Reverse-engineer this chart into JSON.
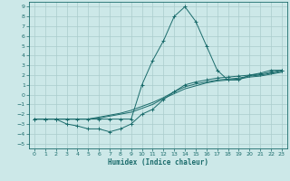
{
  "xlabel": "Humidex (Indice chaleur)",
  "background_color": "#cce8e8",
  "grid_color": "#aacccc",
  "line_color": "#1a6b6b",
  "xlim": [
    -0.5,
    23.5
  ],
  "ylim": [
    -5.5,
    9.5
  ],
  "xticks": [
    0,
    1,
    2,
    3,
    4,
    5,
    6,
    7,
    8,
    9,
    10,
    11,
    12,
    13,
    14,
    15,
    16,
    17,
    18,
    19,
    20,
    21,
    22,
    23
  ],
  "yticks": [
    -5,
    -4,
    -3,
    -2,
    -1,
    0,
    1,
    2,
    3,
    4,
    5,
    6,
    7,
    8,
    9
  ],
  "series": [
    {
      "x": [
        0,
        1,
        2,
        3,
        4,
        5,
        6,
        7,
        8,
        9,
        10,
        11,
        12,
        13,
        14,
        15,
        16,
        17,
        18,
        19,
        20,
        21,
        22,
        23
      ],
      "y": [
        -2.5,
        -2.5,
        -2.5,
        -2.5,
        -2.5,
        -2.5,
        -2.5,
        -2.5,
        -2.5,
        -2.5,
        1.0,
        3.5,
        5.5,
        8.0,
        9.0,
        7.5,
        5.0,
        2.5,
        1.5,
        1.5,
        2.0,
        2.2,
        2.5,
        2.5
      ],
      "marker": "+"
    },
    {
      "x": [
        0,
        1,
        2,
        3,
        4,
        5,
        6,
        7,
        8,
        9,
        10,
        11,
        12,
        13,
        14,
        15,
        16,
        17,
        18,
        19,
        20,
        21,
        22,
        23
      ],
      "y": [
        -2.5,
        -2.5,
        -2.5,
        -2.5,
        -2.5,
        -2.5,
        -2.3,
        -2.1,
        -1.9,
        -1.6,
        -1.2,
        -0.8,
        -0.3,
        0.3,
        0.8,
        1.1,
        1.3,
        1.5,
        1.6,
        1.7,
        1.9,
        2.0,
        2.2,
        2.4
      ],
      "marker": null
    },
    {
      "x": [
        0,
        1,
        2,
        3,
        4,
        5,
        6,
        7,
        8,
        9,
        10,
        11,
        12,
        13,
        14,
        15,
        16,
        17,
        18,
        19,
        20,
        21,
        22,
        23
      ],
      "y": [
        -2.5,
        -2.5,
        -2.5,
        -2.5,
        -2.5,
        -2.5,
        -2.4,
        -2.2,
        -2.0,
        -1.8,
        -1.4,
        -1.0,
        -0.4,
        0.1,
        0.6,
        0.9,
        1.2,
        1.4,
        1.5,
        1.6,
        1.8,
        1.9,
        2.1,
        2.3
      ],
      "marker": null
    },
    {
      "x": [
        0,
        1,
        2,
        3,
        4,
        5,
        6,
        7,
        8,
        9,
        10,
        11,
        12,
        13,
        14,
        15,
        16,
        17,
        18,
        19,
        20,
        21,
        22,
        23
      ],
      "y": [
        -2.5,
        -2.5,
        -2.5,
        -3.0,
        -3.2,
        -3.5,
        -3.5,
        -3.8,
        -3.5,
        -3.0,
        -2.0,
        -1.5,
        -0.5,
        0.3,
        1.0,
        1.3,
        1.5,
        1.7,
        1.8,
        1.9,
        2.0,
        2.1,
        2.3,
        2.5
      ],
      "marker": "+"
    }
  ]
}
